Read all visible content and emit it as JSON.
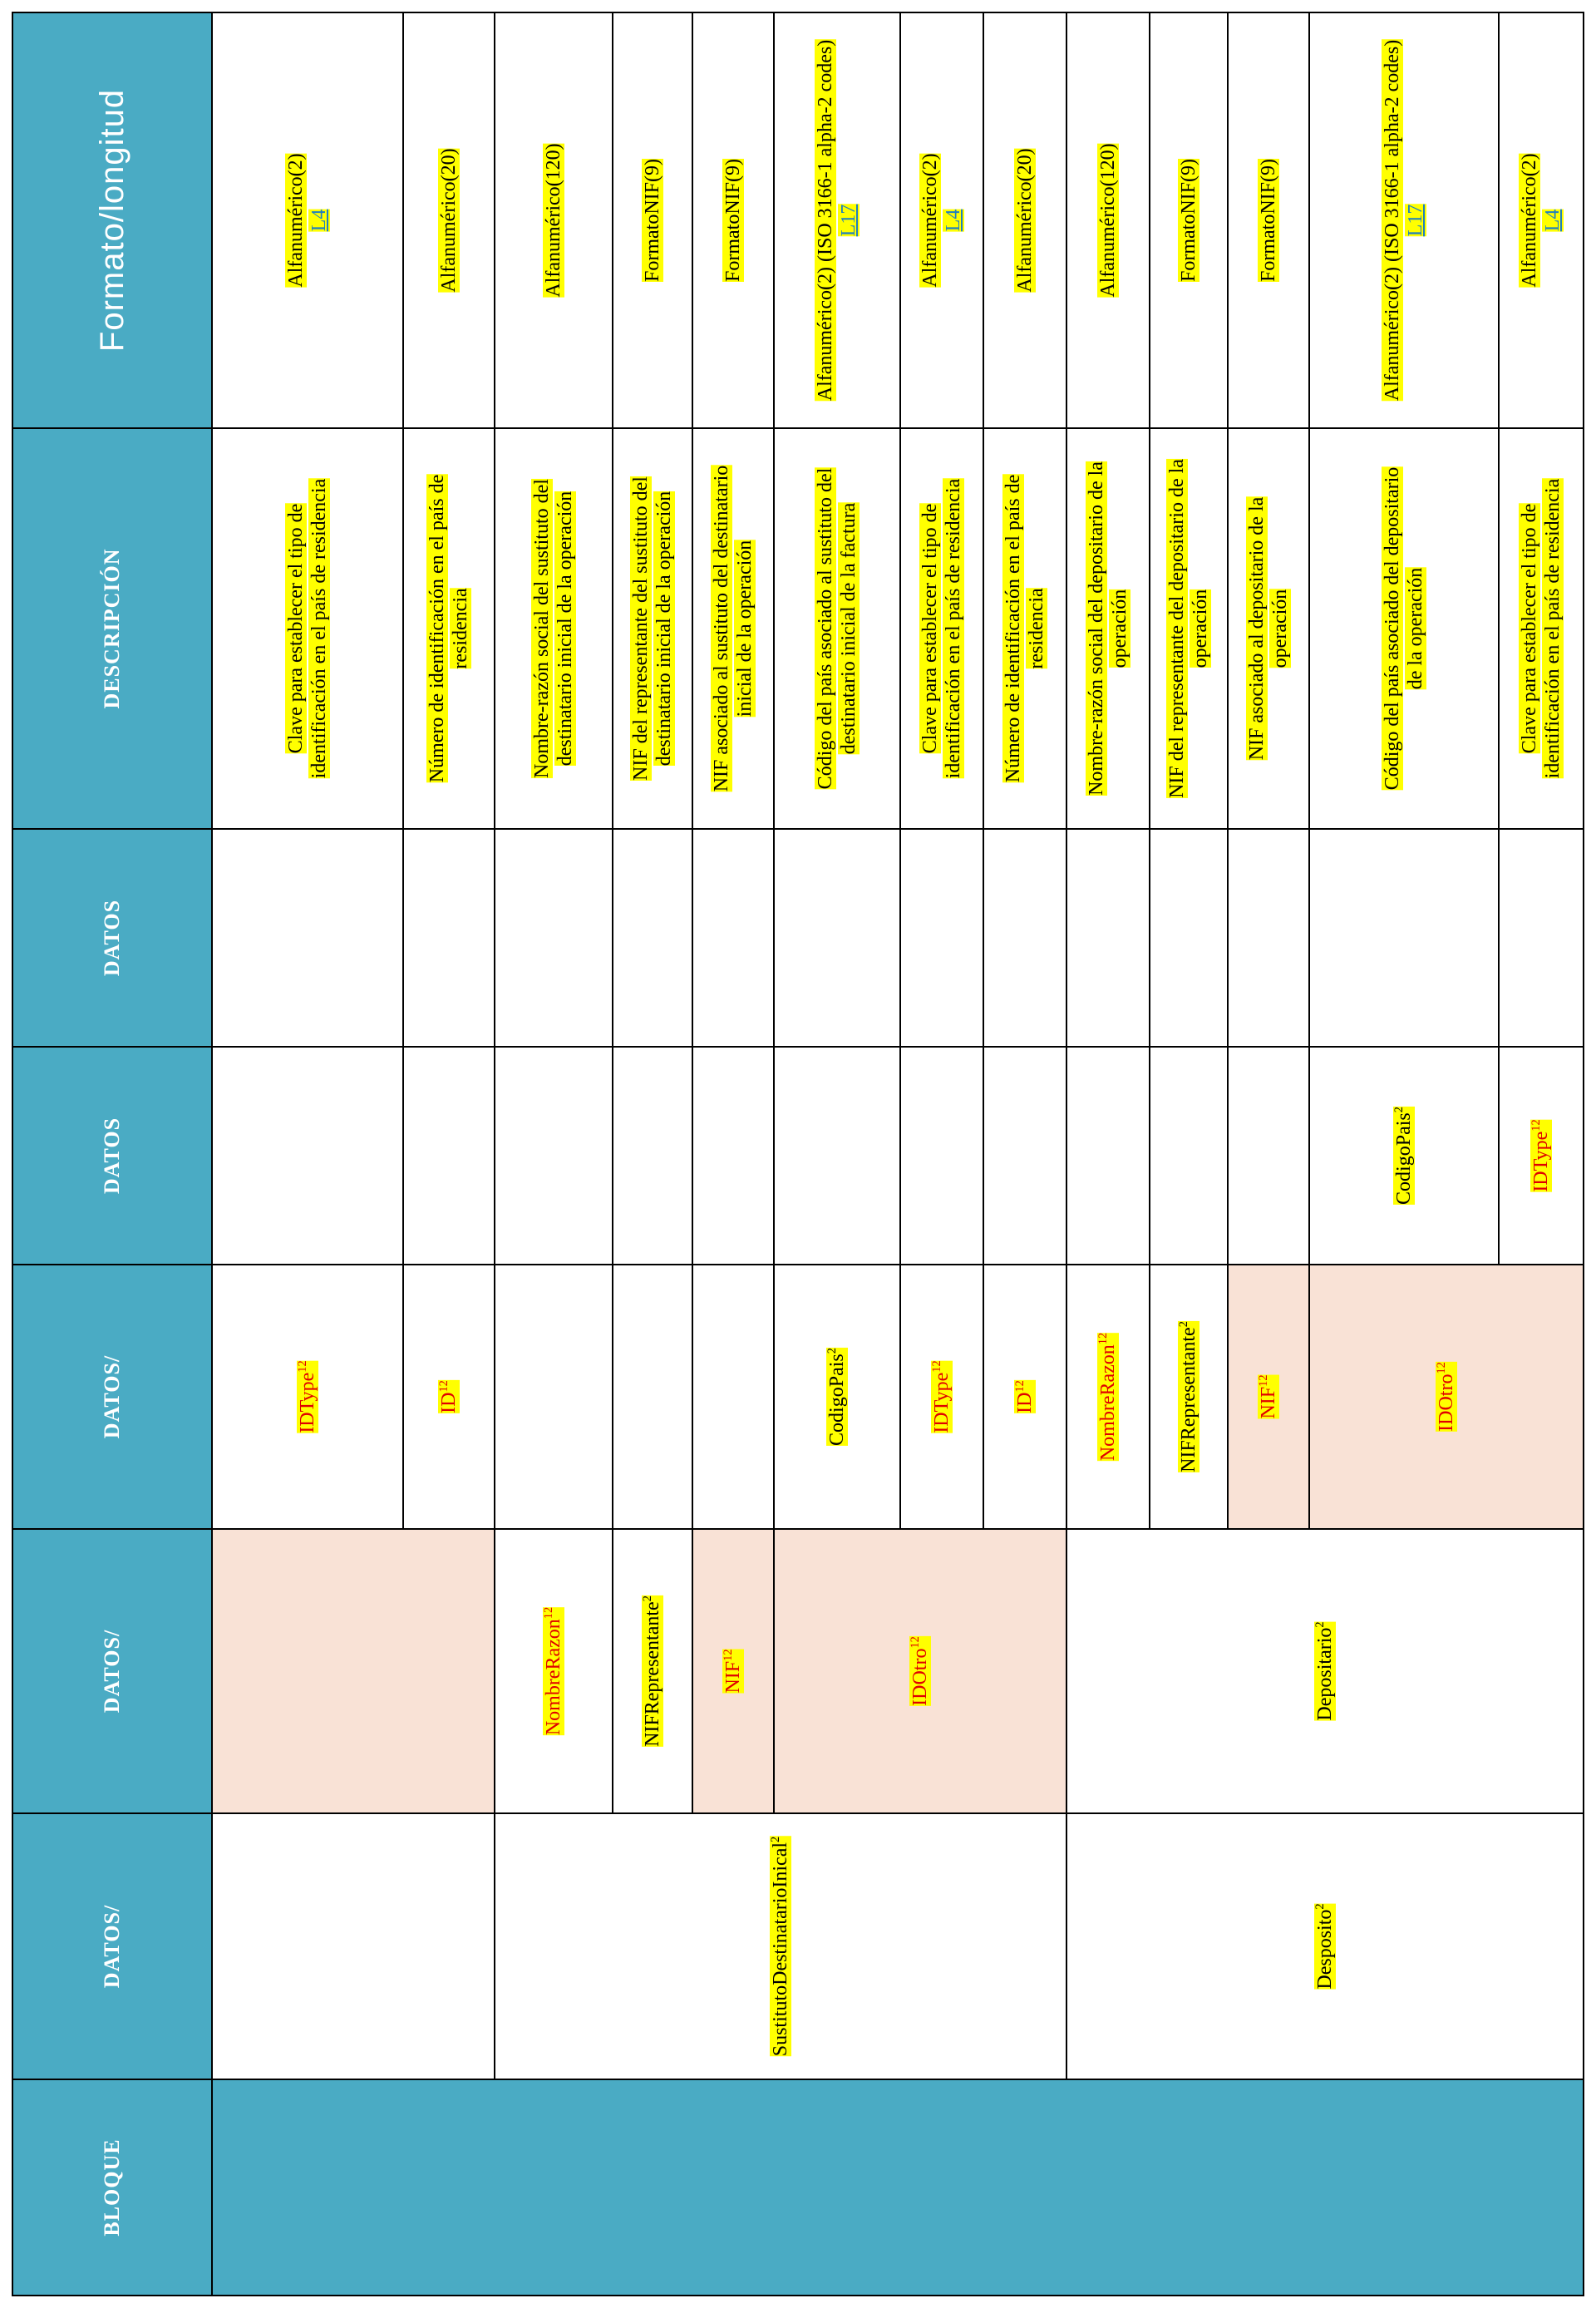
{
  "headers": {
    "formato": "Formato/longitud",
    "descripcion": "DESCRIPCIÓN",
    "datos": "DATOS",
    "datos_slash": "DATOS/",
    "bloque": "BLOQUE"
  },
  "superscripts": {
    "one_two": "12",
    "two": "2"
  },
  "level1": {
    "sustituto": "SustitutoDestinatarioInical",
    "deposito": "Desposito"
  },
  "level2": {
    "nombre": "NombreRazon",
    "nifrep": "NIFRepresentante",
    "nif": "NIF",
    "idotro": "IDOtro",
    "depositario": "Depositario"
  },
  "level3": {
    "idtype": "IDType",
    "id": "ID",
    "codigo": "CodigoPais",
    "idtype2": "IDType",
    "id2": "ID",
    "nombre": "NombreRazon",
    "nifrep": "NIFRepresentante",
    "nif": "NIF",
    "idotro": "IDOtro"
  },
  "level4": {
    "codigo": "CodigoPais",
    "idtype": "IDType"
  },
  "descriptions": {
    "d1": [
      "Clave para establecer el tipo de",
      "identificación en el país de residencia"
    ],
    "d2": [
      "Número de identificación en el país de",
      "residencia"
    ],
    "d3": [
      "Nombre-razón social del sustituto del",
      "destinatario inicial de la operación"
    ],
    "d4": [
      "NIF del representante del sustituto del",
      "destinatario inicial de la operación"
    ],
    "d5": [
      "NIF asociado al sustituto del destinatario",
      "inicial de la operación"
    ],
    "d6": [
      "Código del país asociado al sustituto del",
      "destinatario inicial de la factura"
    ],
    "d7": [
      "Clave para establecer el tipo de",
      "identificación en el país de residencia"
    ],
    "d8": [
      "Número de identificación en el país de",
      "residencia"
    ],
    "d9": [
      "Nombre-razón social del depositario de la",
      "operación"
    ],
    "d10": [
      "NIF del representante del depositario de la",
      "operación"
    ],
    "d11": [
      "NIF asociado al depositario de la",
      "operación"
    ],
    "d12": [
      "Código del país asociado del depositario",
      "de la operación"
    ],
    "d13": [
      "Clave para establecer el tipo de",
      "identificación en el país de residencia"
    ]
  },
  "formats": {
    "f1": "Alfanumérico(2)",
    "f1_link": "L4",
    "f2": "Alfanumérico(20)",
    "f3": "Alfanumérico(120)",
    "f4": "FormatoNIF(9)",
    "f5": "FormatoNIF(9)",
    "f6": "Alfanumérico(2) (ISO 3166-1 alpha-2 codes)",
    "f6_link": "L17",
    "f7": "Alfanumérico(2)",
    "f7_link": "L4",
    "f8": "Alfanumérico(20)",
    "f9": "Alfanumérico(120)",
    "f10": "FormatoNIF(9)",
    "f11": "FormatoNIF(9)",
    "f12": "Alfanumérico(2) (ISO 3166-1 alpha-2 codes)",
    "f12_link": "L17",
    "f13": "Alfanumérico(2)",
    "f13_link": "L4"
  }
}
